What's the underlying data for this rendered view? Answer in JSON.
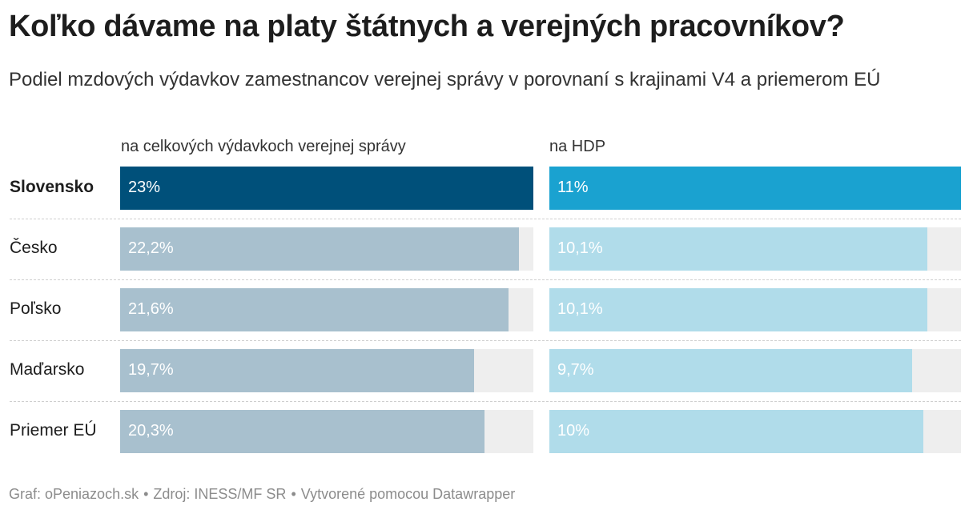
{
  "title": "Koľko dávame na platy štátnych a verejných pracovníkov?",
  "subtitle": "Podiel mzdových výdavkov zamestnancov verejnej správy v porovnaní s krajinami V4 a priemerom EÚ",
  "footer": {
    "graf": "Graf: oPeniazoch.sk",
    "zdroj": "Zdroj: INESS/MF SR",
    "tool": "Vytvorené pomocou Datawrapper",
    "separator": "•"
  },
  "chart_data": {
    "type": "bar",
    "orientation": "horizontal",
    "categories": [
      "Slovensko",
      "Česko",
      "Poľsko",
      "Maďarsko",
      "Priemer EÚ"
    ],
    "highlight": "Slovensko",
    "series": [
      {
        "name": "na celkových výdavkoch verejnej správy",
        "values": [
          23,
          22.2,
          21.6,
          19.7,
          20.3
        ],
        "labels": [
          "23%",
          "22,2%",
          "21,6%",
          "19,7%",
          "20,3%"
        ],
        "max": 23,
        "color_highlight": "#00507a",
        "color": "#a8c0ce"
      },
      {
        "name": "na HDP",
        "values": [
          11,
          10.1,
          10.1,
          9.7,
          10
        ],
        "labels": [
          "11%",
          "10,1%",
          "10,1%",
          "9,7%",
          "10%"
        ],
        "max": 11,
        "color_highlight": "#1aa2d0",
        "color": "#b0dcea"
      }
    ],
    "background_color": "#eeeeee",
    "unit": "%"
  }
}
